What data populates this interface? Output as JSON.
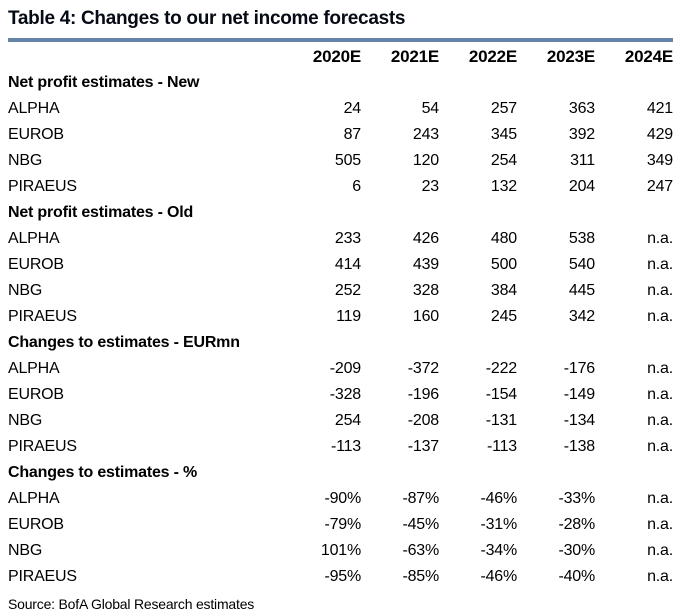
{
  "title": "Table 4: Changes to our net income forecasts",
  "columns": [
    "2020E",
    "2021E",
    "2022E",
    "2023E",
    "2024E"
  ],
  "sections": [
    {
      "header": "Net profit estimates - New",
      "rows": [
        {
          "label": "ALPHA",
          "values": [
            "24",
            "54",
            "257",
            "363",
            "421"
          ]
        },
        {
          "label": "EUROB",
          "values": [
            "87",
            "243",
            "345",
            "392",
            "429"
          ]
        },
        {
          "label": "NBG",
          "values": [
            "505",
            "120",
            "254",
            "311",
            "349"
          ]
        },
        {
          "label": "PIRAEUS",
          "values": [
            "6",
            "23",
            "132",
            "204",
            "247"
          ]
        }
      ]
    },
    {
      "header": "Net profit estimates - Old",
      "rows": [
        {
          "label": "ALPHA",
          "values": [
            "233",
            "426",
            "480",
            "538",
            "n.a."
          ]
        },
        {
          "label": "EUROB",
          "values": [
            "414",
            "439",
            "500",
            "540",
            "n.a."
          ]
        },
        {
          "label": "NBG",
          "values": [
            "252",
            "328",
            "384",
            "445",
            "n.a."
          ]
        },
        {
          "label": "PIRAEUS",
          "values": [
            "119",
            "160",
            "245",
            "342",
            "n.a."
          ]
        }
      ]
    },
    {
      "header": "Changes to estimates - EURmn",
      "rows": [
        {
          "label": "ALPHA",
          "values": [
            "-209",
            "-372",
            "-222",
            "-176",
            "n.a."
          ]
        },
        {
          "label": "EUROB",
          "values": [
            "-328",
            "-196",
            "-154",
            "-149",
            "n.a."
          ]
        },
        {
          "label": "NBG",
          "values": [
            "254",
            "-208",
            "-131",
            "-134",
            "n.a."
          ]
        },
        {
          "label": "PIRAEUS",
          "values": [
            "-113",
            "-137",
            "-113",
            "-138",
            "n.a."
          ]
        }
      ]
    },
    {
      "header": "Changes to estimates - %",
      "rows": [
        {
          "label": "ALPHA",
          "values": [
            "-90%",
            "-87%",
            "-46%",
            "-33%",
            "n.a."
          ]
        },
        {
          "label": "EUROB",
          "values": [
            "-79%",
            "-45%",
            "-31%",
            "-28%",
            "n.a."
          ]
        },
        {
          "label": "NBG",
          "values": [
            "101%",
            "-63%",
            "-34%",
            "-30%",
            "n.a."
          ]
        },
        {
          "label": "PIRAEUS",
          "values": [
            "-95%",
            "-85%",
            "-46%",
            "-40%",
            "n.a."
          ]
        }
      ]
    }
  ],
  "source": "Source: BofA Global Research estimates",
  "colors": {
    "rule": "#6684a7",
    "text": "#000000"
  }
}
